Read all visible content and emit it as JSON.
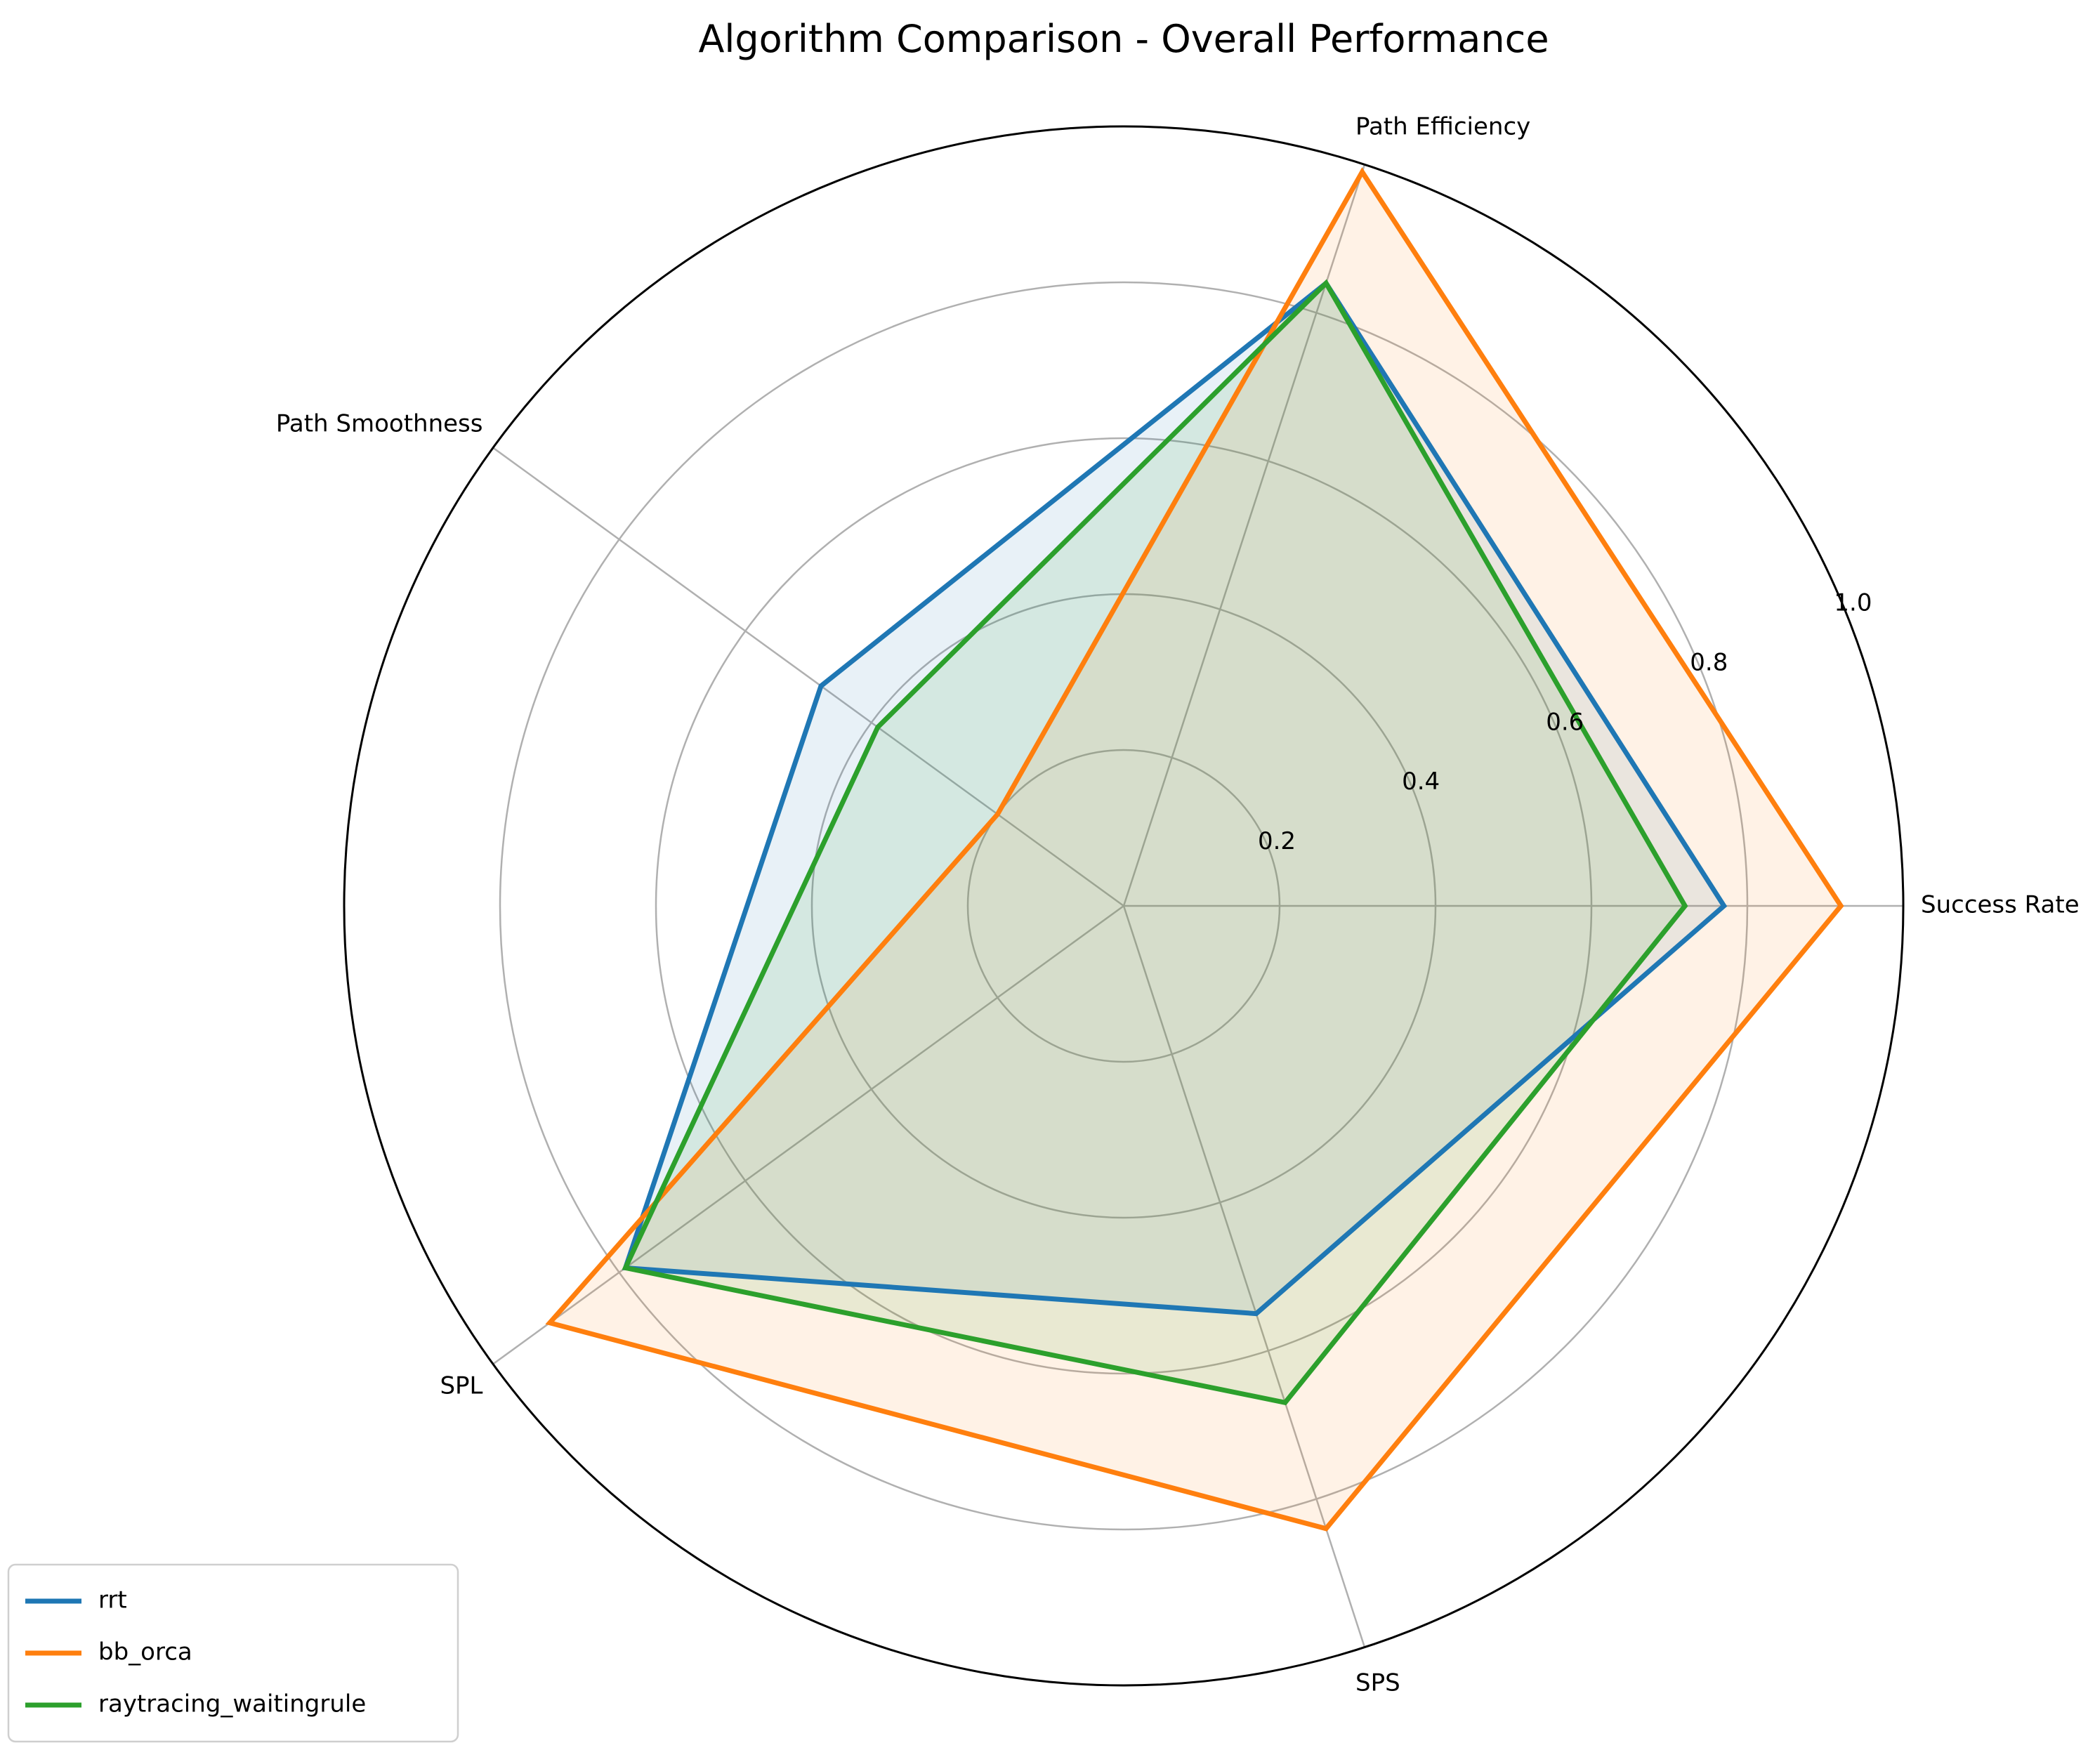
{
  "chart_data": {
    "type": "radar",
    "title": "Algorithm Comparison - Overall Performance",
    "categories": [
      "Success Rate",
      "Path Efficiency",
      "Path Smoothness",
      "SPL",
      "SPS"
    ],
    "rlim": [
      0,
      1.0
    ],
    "ticks": [
      "0.2",
      "0.4",
      "0.6",
      "0.8",
      "1.0"
    ],
    "tick_values": [
      0.2,
      0.4,
      0.6,
      0.8,
      1.0
    ],
    "grid": true,
    "legend_position": "lower-left",
    "series": [
      {
        "name": "rrt",
        "color": "#1f77b4",
        "values": [
          0.77,
          0.84,
          0.48,
          0.79,
          0.55
        ]
      },
      {
        "name": "bb_orca",
        "color": "#ff7f0e",
        "values": [
          0.92,
          0.99,
          0.2,
          0.91,
          0.84
        ]
      },
      {
        "name": "raytracing_waitingrule",
        "color": "#2ca02c",
        "values": [
          0.72,
          0.84,
          0.39,
          0.79,
          0.67
        ]
      }
    ]
  }
}
